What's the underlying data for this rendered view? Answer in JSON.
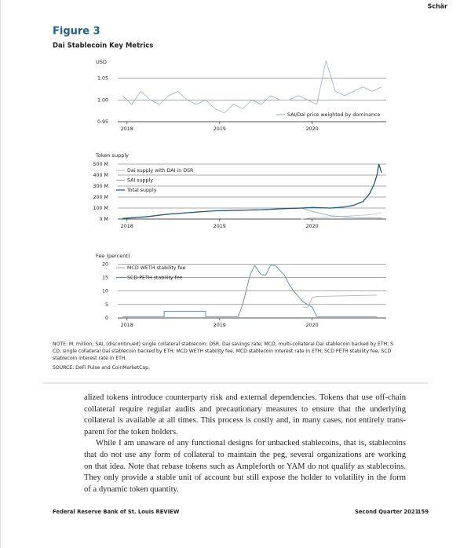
{
  "header": {
    "author": "Schär"
  },
  "figure": {
    "label": "Figure 3",
    "title": "Dai Stablecoin Key Metrics"
  },
  "chart_data": [
    {
      "type": "line",
      "y_label": "USD",
      "x": [
        2017.95,
        2018.05,
        2018.15,
        2018.25,
        2018.35,
        2018.45,
        2018.55,
        2018.65,
        2018.75,
        2018.85,
        2018.95,
        2019.05,
        2019.15,
        2019.25,
        2019.35,
        2019.45,
        2019.55,
        2019.65,
        2019.75,
        2019.85,
        2019.95,
        2020.05,
        2020.15,
        2020.25,
        2020.35,
        2020.45,
        2020.55,
        2020.65,
        2020.75
      ],
      "series": [
        {
          "name": "SAI/Dai price weighted by dominance",
          "color": "#a9b6c6",
          "values": [
            1.01,
            0.99,
            1.02,
            1.0,
            0.99,
            1.01,
            1.02,
            1.0,
            0.99,
            1.0,
            0.98,
            0.97,
            0.99,
            0.98,
            1.0,
            0.99,
            1.01,
            1.0,
            1.0,
            1.01,
            1.0,
            0.99,
            1.09,
            1.02,
            1.01,
            1.02,
            1.03,
            1.02,
            1.03
          ]
        }
      ],
      "xlim": [
        2017.9,
        2020.8
      ],
      "xticks": [
        2018,
        2019,
        2020
      ],
      "ylim": [
        0.95,
        1.1
      ],
      "yticks": [
        0.95,
        {
          "value": 1,
          "label": "1.00"
        },
        1.05
      ],
      "grid": true,
      "legend": "lower right"
    },
    {
      "type": "line",
      "y_label": "Token supply",
      "x": [
        2017.95,
        2018.2,
        2018.45,
        2018.7,
        2018.95,
        2019.2,
        2019.45,
        2019.7,
        2019.88,
        2020.0,
        2020.2,
        2020.35,
        2020.45,
        2020.55,
        2020.62,
        2020.67,
        2020.7,
        2020.72,
        2020.75
      ],
      "series": [
        {
          "name": "Dai supply with DAI in DSR",
          "color": "#c4c4c4",
          "values": [
            null,
            null,
            null,
            null,
            null,
            null,
            null,
            null,
            0,
            10,
            20,
            25,
            30,
            35,
            40,
            45,
            50,
            55,
            55
          ]
        },
        {
          "name": "SAI supply",
          "color": "#8da8c2",
          "values": [
            5,
            20,
            45,
            60,
            75,
            80,
            85,
            95,
            100,
            70,
            30,
            20,
            15,
            12,
            10,
            10,
            9,
            9,
            9
          ]
        },
        {
          "name": "Total supply",
          "color": "#1f5a85",
          "values": [
            5,
            20,
            45,
            60,
            75,
            80,
            85,
            95,
            100,
            105,
            100,
            110,
            125,
            160,
            230,
            320,
            400,
            500,
            420
          ]
        }
      ],
      "xlim": [
        2017.9,
        2020.8
      ],
      "xticks": [
        2018,
        2019,
        2020
      ],
      "ylim": [
        0,
        500
      ],
      "yticks": [
        {
          "value": 0,
          "label": "0 M"
        },
        {
          "value": 100,
          "label": "100 M"
        },
        {
          "value": 200,
          "label": "200 M"
        },
        {
          "value": 300,
          "label": "300 M"
        },
        {
          "value": 400,
          "label": "400 M"
        },
        {
          "value": 500,
          "label": "500 M"
        }
      ],
      "grid": true,
      "legend": "upper left"
    },
    {
      "type": "line",
      "y_label": "Fee (percent)",
      "x": [
        2017.95,
        2018.4,
        2018.4,
        2018.85,
        2018.85,
        2019.2,
        2019.25,
        2019.3,
        2019.33,
        2019.38,
        2019.45,
        2019.5,
        2019.55,
        2019.6,
        2019.7,
        2019.75,
        2019.8,
        2019.85,
        2019.9,
        2019.95,
        2020.0,
        2020.05,
        2020.7
      ],
      "series": [
        {
          "name": "MCD WETH stability fee",
          "color": "#b4b4b4",
          "values": [
            null,
            null,
            null,
            null,
            null,
            null,
            null,
            null,
            null,
            null,
            null,
            null,
            null,
            null,
            null,
            null,
            null,
            null,
            4,
            4,
            7.5,
            8,
            8.5
          ]
        },
        {
          "name": "SCD PETH stability fee",
          "color": "#5e86a8",
          "values": [
            0.5,
            0.5,
            2.5,
            2.5,
            0.5,
            0.5,
            5,
            12,
            16,
            19.5,
            16,
            16,
            19.5,
            19.5,
            16,
            12.5,
            10,
            8,
            6,
            5,
            4,
            0.5,
            0.5
          ]
        }
      ],
      "xlim": [
        2017.9,
        2020.8
      ],
      "xticks": [
        2018,
        2019,
        2020
      ],
      "ylim": [
        0,
        21
      ],
      "yticks": [
        0,
        5,
        10,
        15,
        20
      ],
      "grid": true,
      "legend": "upper left"
    }
  ],
  "note": [
    "NOTE: M, million; SAI, (discontinued) single collateral stablecoin; DSR, Dai savings rate; MCD, multi-collateral Dai stablecoin backed by ETH; S",
    "CD, single collateral Dai stablecoin backed by ETH; MCD WETH stability fee, MCD stablecoin interest rate in ETH; SCD PETH stability fee, SCD",
    "stablecoin interest rate in ETH."
  ],
  "source": "SOURCE: DeFi Pulse and CoinMarketCap.",
  "body": [
    [
      "alized tokens introduce counterparty risk and external dependencies. Tokens that use off-chain",
      "collateral require regular audits and precautionary measures to ensure that the underlying",
      "collateral is available at all times. This process is costly and, in many cases, not entirely trans-",
      "parent for the token holders."
    ],
    [
      "While I am unaware of any functional designs for unbacked stablecoins, that is, stablecoins",
      "that do not use any form of collateral to maintain the peg, several organizations are working",
      "on that idea. Note that rebase tokens such as Ampleforth or YAM do not qualify as stablecoins.",
      "They only provide a stable unit of account but still expose the holder to volatility in the form",
      "of a dynamic token quantity."
    ]
  ],
  "footer": {
    "left": "Federal Reserve Bank of St. Louis REVIEW",
    "issue": "Second Quarter 2021",
    "page": "159"
  }
}
